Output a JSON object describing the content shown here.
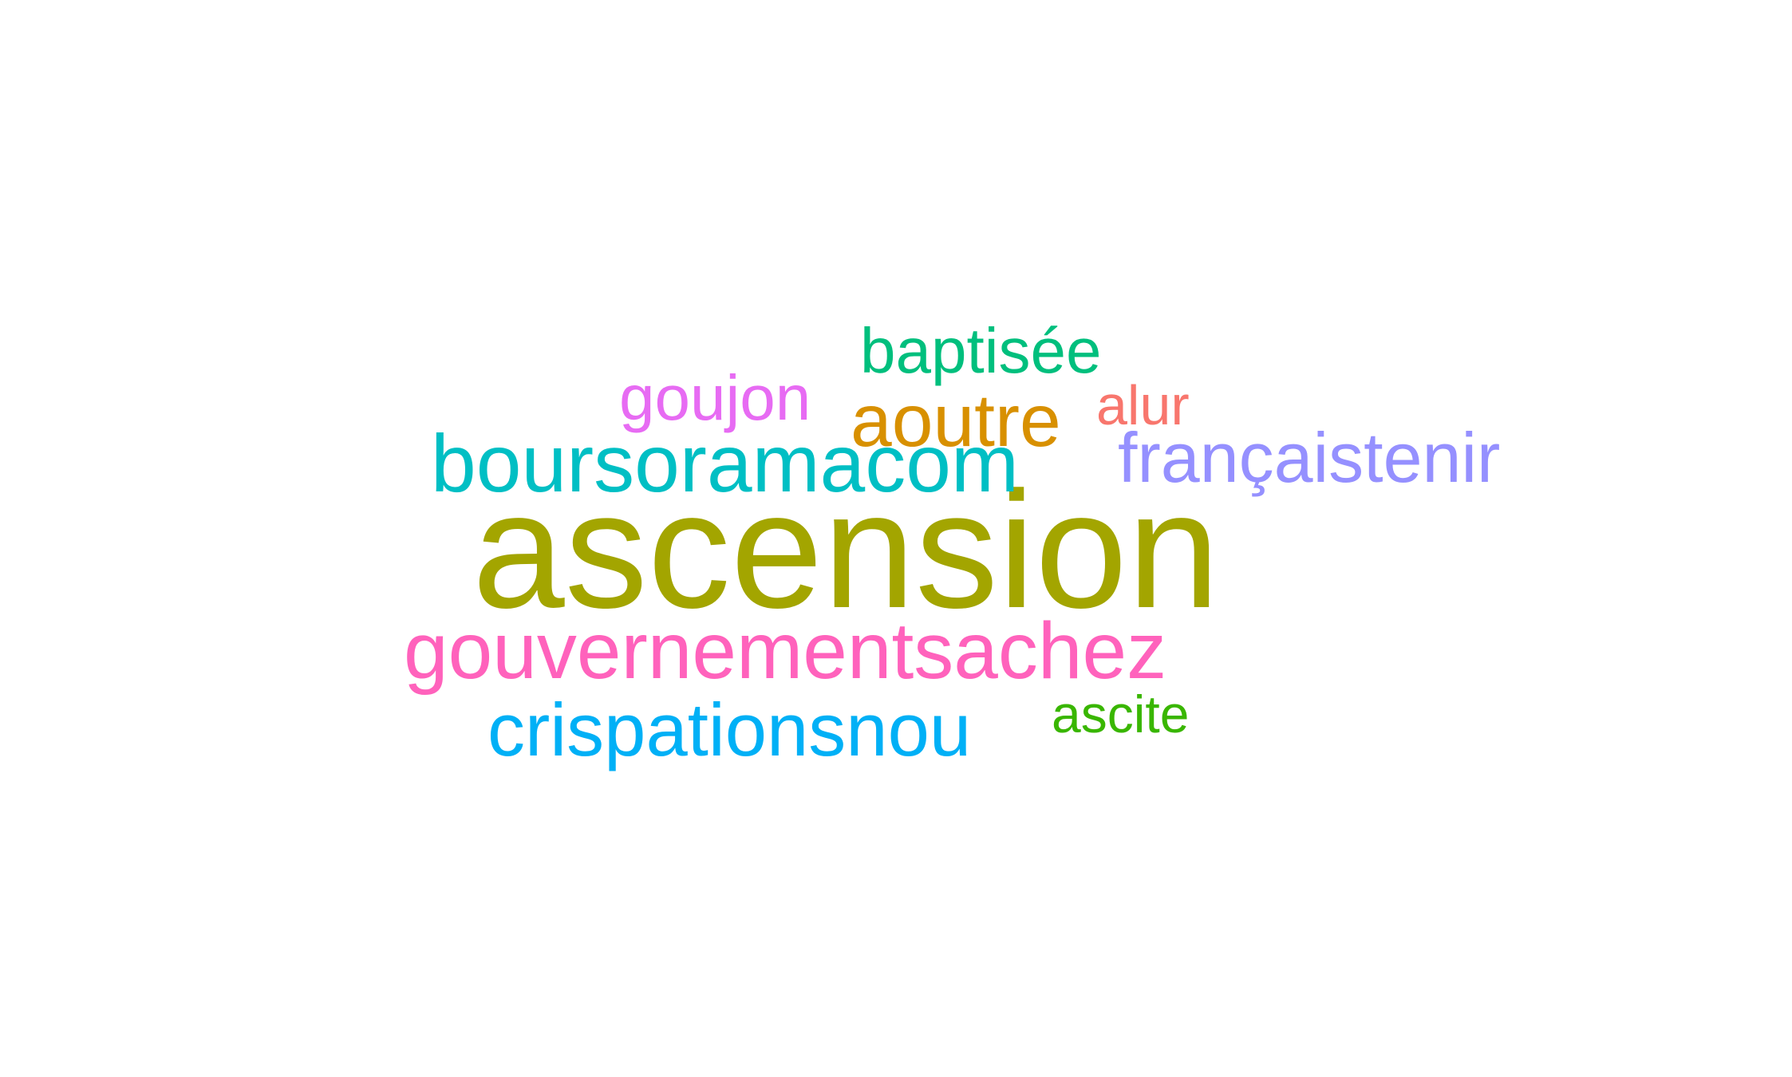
{
  "words": [
    {
      "id": "w-ascension",
      "text": "ascension",
      "color": "#a3a500"
    },
    {
      "id": "w-boursoramacom",
      "text": "boursoramacom",
      "color": "#00bfc4"
    },
    {
      "id": "w-gouvernementsachez",
      "text": "gouvernementsachez",
      "color": "#ff62bc"
    },
    {
      "id": "w-crispationsnou",
      "text": "crispationsnou",
      "color": "#00b0f6"
    },
    {
      "id": "w-francaistenir",
      "text": "françaistenir",
      "color": "#9590ff"
    },
    {
      "id": "w-aoutre",
      "text": "aoutre",
      "color": "#d89000"
    },
    {
      "id": "w-baptisee",
      "text": "baptisée",
      "color": "#00bf7d"
    },
    {
      "id": "w-goujon",
      "text": "goujon",
      "color": "#e76bf3"
    },
    {
      "id": "w-alur",
      "text": "alur",
      "color": "#f8766d"
    },
    {
      "id": "w-ascite",
      "text": "ascite",
      "color": "#39b600"
    }
  ]
}
